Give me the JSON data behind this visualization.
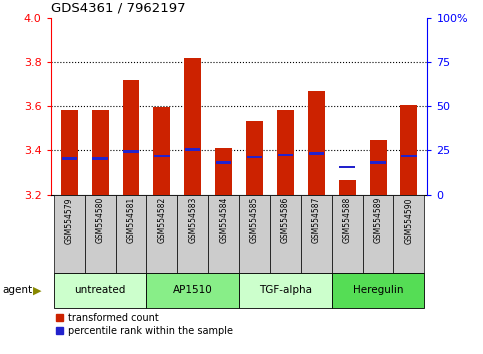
{
  "title": "GDS4361 / 7962197",
  "samples": [
    "GSM554579",
    "GSM554580",
    "GSM554581",
    "GSM554582",
    "GSM554583",
    "GSM554584",
    "GSM554585",
    "GSM554586",
    "GSM554587",
    "GSM554588",
    "GSM554589",
    "GSM554590"
  ],
  "bar_values": [
    3.585,
    3.585,
    3.72,
    3.595,
    3.82,
    3.41,
    3.535,
    3.585,
    3.67,
    3.265,
    3.445,
    3.605
  ],
  "blue_values": [
    3.365,
    3.365,
    3.395,
    3.375,
    3.405,
    3.345,
    3.37,
    3.38,
    3.385,
    3.325,
    3.345,
    3.375
  ],
  "bar_color": "#cc2200",
  "blue_color": "#2222cc",
  "ylim_left": [
    3.2,
    4.0
  ],
  "ylim_right": [
    0,
    100
  ],
  "yticks_left": [
    3.2,
    3.4,
    3.6,
    3.8,
    4.0
  ],
  "yticks_right": [
    0,
    25,
    50,
    75,
    100
  ],
  "ytick_labels_right": [
    "0",
    "25",
    "50",
    "75",
    "100%"
  ],
  "gridlines": [
    3.4,
    3.6,
    3.8
  ],
  "agents": [
    {
      "label": "untreated",
      "start": 0,
      "end": 3,
      "color": "#ccffcc"
    },
    {
      "label": "AP1510",
      "start": 3,
      "end": 6,
      "color": "#88ee88"
    },
    {
      "label": "TGF-alpha",
      "start": 6,
      "end": 9,
      "color": "#ccffcc"
    },
    {
      "label": "Heregulin",
      "start": 9,
      "end": 12,
      "color": "#55dd55"
    }
  ],
  "agent_label": "agent",
  "xlabel_bg": "#cccccc",
  "bar_bottom": 3.2,
  "legend_red_label": "transformed count",
  "legend_blue_label": "percentile rank within the sample"
}
